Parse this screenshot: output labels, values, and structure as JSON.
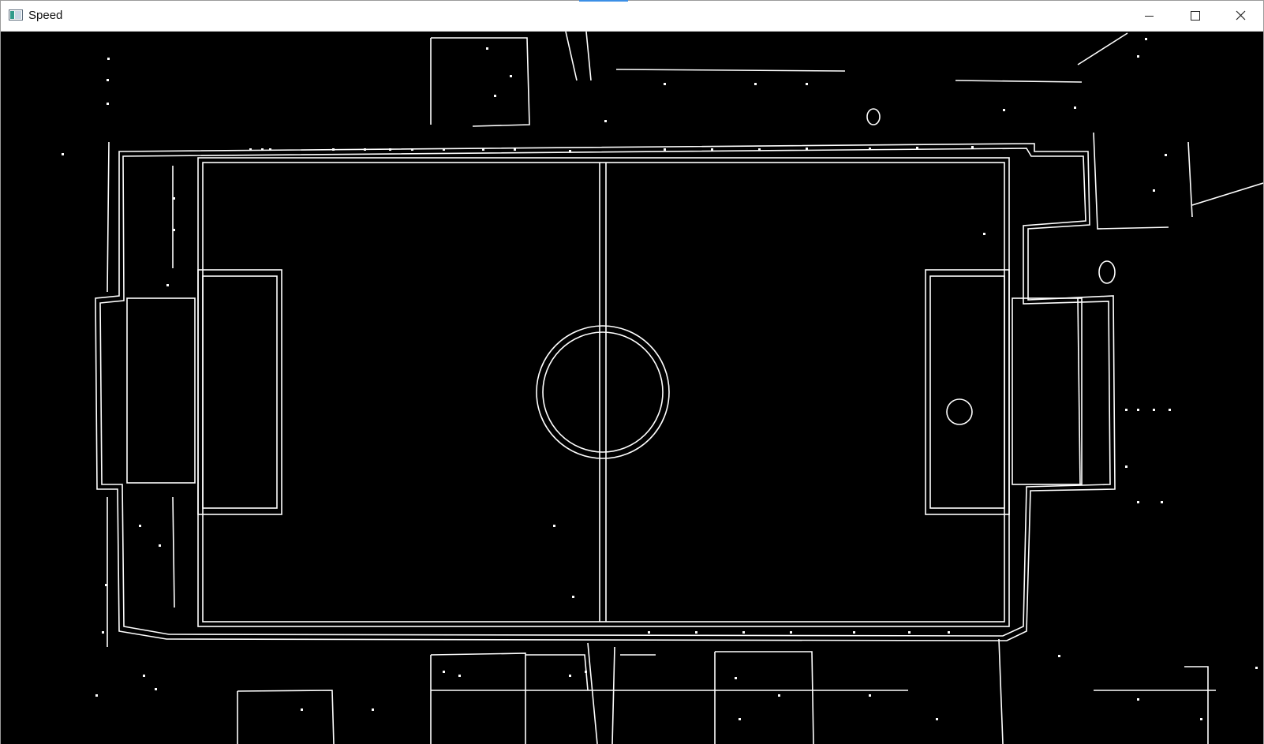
{
  "window": {
    "title": "Speed",
    "icon": "app-window-icon",
    "controls": {
      "minimize_icon": "minimize-icon",
      "maximize_icon": "maximize-icon",
      "close_icon": "close-icon"
    },
    "accent_color": "#3b8fe6"
  },
  "image": {
    "description_type": "edge-detected top-down view",
    "background_color": "#000000",
    "edge_color": "#ffffff"
  }
}
